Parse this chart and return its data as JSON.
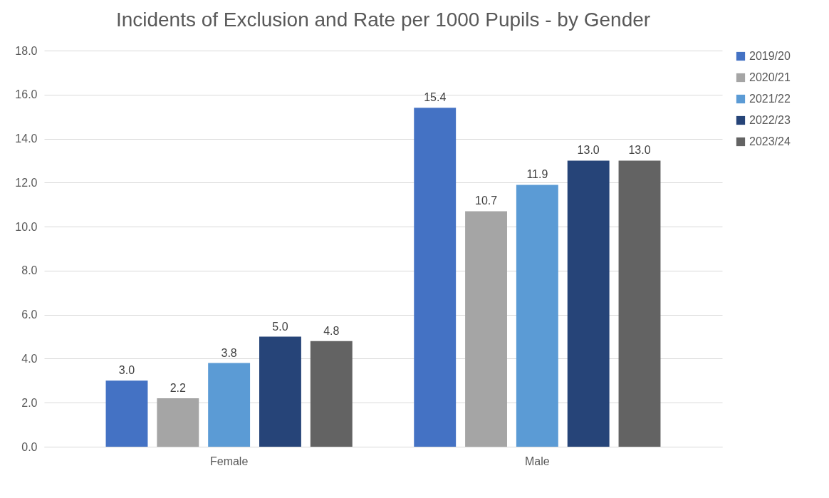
{
  "chart_data": {
    "type": "bar",
    "title": "Incidents of Exclusion and Rate per 1000 Pupils - by Gender",
    "categories": [
      "Female",
      "Male"
    ],
    "series": [
      {
        "name": "2019/20",
        "color": "#4472c4",
        "values": [
          3.0,
          15.4
        ],
        "value_labels": [
          "3.0",
          "15.4"
        ]
      },
      {
        "name": "2020/21",
        "color": "#a5a5a5",
        "values": [
          2.2,
          10.7
        ],
        "value_labels": [
          "2.2",
          "10.7"
        ]
      },
      {
        "name": "2021/22",
        "color": "#5b9bd5",
        "values": [
          3.8,
          11.9
        ],
        "value_labels": [
          "3.8",
          "11.9"
        ]
      },
      {
        "name": "2022/23",
        "color": "#264478",
        "values": [
          5.0,
          13.0
        ],
        "value_labels": [
          "5.0",
          "13.0"
        ]
      },
      {
        "name": "2023/24",
        "color": "#636363",
        "values": [
          4.8,
          13.0
        ],
        "value_labels": [
          "4.8",
          "13.0"
        ]
      }
    ],
    "ylim": [
      0,
      18
    ],
    "yticks": [
      {
        "value": 0,
        "label": "0.0"
      },
      {
        "value": 2,
        "label": "2.0"
      },
      {
        "value": 4,
        "label": "4.0"
      },
      {
        "value": 6,
        "label": "6.0"
      },
      {
        "value": 8,
        "label": "8.0"
      },
      {
        "value": 10,
        "label": "10.0"
      },
      {
        "value": 12,
        "label": "12.0"
      },
      {
        "value": 14,
        "label": "14.0"
      },
      {
        "value": 16,
        "label": "16.0"
      },
      {
        "value": 18,
        "label": "18.0"
      }
    ],
    "grid": "y",
    "legend": "right"
  }
}
